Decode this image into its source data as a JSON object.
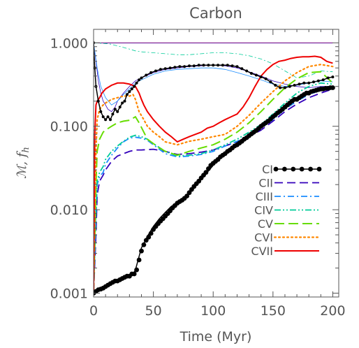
{
  "chart_data": {
    "type": "line",
    "title": "Carbon",
    "xlabel": "Time (Myr)",
    "ylabel": "ℳ, f",
    "ylabel_sub": "h",
    "xlim": [
      0,
      205
    ],
    "ylim": [
      0.0009,
      1.45
    ],
    "yscale": "log",
    "x_ticks": [
      0,
      50,
      100,
      150,
      200
    ],
    "x_tick_labels": [
      "0",
      "50",
      "100",
      "150",
      "200"
    ],
    "y_ticks": [
      0.001,
      0.01,
      0.1,
      1.0
    ],
    "y_tick_labels": [
      "0.001",
      "0.010",
      "0.100",
      "1.000"
    ],
    "grid": false,
    "legend_position": "lower-right",
    "series": [
      {
        "name": "CI",
        "color": "#000000",
        "style": "solid-dots",
        "x": [
          0,
          2,
          3,
          5,
          10,
          15,
          20,
          25,
          30,
          33,
          35,
          40,
          45,
          50,
          55,
          60,
          65,
          70,
          75,
          80,
          85,
          90,
          95,
          100,
          105,
          110,
          115,
          120,
          125,
          130,
          135,
          140,
          145,
          150,
          155,
          160,
          165,
          170,
          175,
          180,
          185,
          190,
          195,
          200
        ],
        "y": [
          0.001,
          0.00105,
          0.0011,
          0.00112,
          0.0012,
          0.0013,
          0.0014,
          0.0015,
          0.0016,
          0.0017,
          0.0019,
          0.0035,
          0.0048,
          0.0063,
          0.0078,
          0.0093,
          0.011,
          0.012,
          0.0135,
          0.016,
          0.019,
          0.023,
          0.028,
          0.034,
          0.04,
          0.047,
          0.052,
          0.058,
          0.065,
          0.075,
          0.087,
          0.1,
          0.115,
          0.13,
          0.15,
          0.17,
          0.19,
          0.21,
          0.23,
          0.25,
          0.27,
          0.28,
          0.28,
          0.29
        ]
      },
      {
        "name": "CII",
        "color": "#3300bb",
        "style": "dash",
        "x": [
          0,
          2,
          3,
          5,
          8,
          10,
          15,
          20,
          25,
          30,
          35,
          40,
          50,
          60,
          70,
          80,
          90,
          100,
          110,
          120,
          130,
          140,
          150,
          160,
          170,
          180,
          190,
          200
        ],
        "y": [
          0.001,
          0.005,
          0.015,
          0.022,
          0.026,
          0.03,
          0.038,
          0.044,
          0.047,
          0.05,
          0.052,
          0.052,
          0.053,
          0.05,
          0.046,
          0.047,
          0.049,
          0.052,
          0.058,
          0.065,
          0.075,
          0.09,
          0.115,
          0.15,
          0.185,
          0.22,
          0.25,
          0.28
        ]
      },
      {
        "name": "CIII",
        "color": "#1a8cff",
        "style": "dash-dot",
        "x": [
          0,
          2,
          3,
          5,
          8,
          10,
          15,
          20,
          25,
          30,
          35,
          40,
          45,
          50,
          60,
          70,
          80,
          90,
          100,
          110,
          120,
          130,
          140,
          150,
          160,
          170,
          180,
          190,
          200
        ],
        "y": [
          0.001,
          0.008,
          0.02,
          0.025,
          0.028,
          0.035,
          0.045,
          0.055,
          0.065,
          0.072,
          0.074,
          0.072,
          0.068,
          0.06,
          0.047,
          0.043,
          0.044,
          0.046,
          0.05,
          0.058,
          0.066,
          0.078,
          0.095,
          0.12,
          0.16,
          0.2,
          0.24,
          0.27,
          0.29
        ]
      },
      {
        "name": "CIV",
        "color": "#00cc99",
        "style": "dash-dot-dot",
        "x": [
          0,
          2,
          3,
          5,
          8,
          10,
          15,
          20,
          25,
          30,
          35,
          40,
          45,
          50,
          60,
          70,
          80,
          90,
          100,
          110,
          120,
          130,
          140,
          150,
          160,
          170,
          180,
          190,
          200
        ],
        "y": [
          0.001,
          0.01,
          0.022,
          0.028,
          0.033,
          0.04,
          0.05,
          0.058,
          0.066,
          0.074,
          0.078,
          0.075,
          0.07,
          0.062,
          0.05,
          0.044,
          0.045,
          0.047,
          0.052,
          0.06,
          0.07,
          0.085,
          0.105,
          0.14,
          0.19,
          0.25,
          0.3,
          0.33,
          0.32
        ]
      },
      {
        "name": "CV",
        "color": "#66dd00",
        "style": "long-dash",
        "x": [
          0,
          2,
          3,
          5,
          8,
          10,
          15,
          20,
          25,
          30,
          35,
          38,
          42,
          45,
          50,
          55,
          60,
          70,
          80,
          90,
          100,
          110,
          120,
          130,
          140,
          150,
          160,
          170,
          180,
          190,
          200
        ],
        "y": [
          0.001,
          0.02,
          0.05,
          0.07,
          0.085,
          0.09,
          0.1,
          0.11,
          0.115,
          0.118,
          0.13,
          0.11,
          0.085,
          0.07,
          0.062,
          0.055,
          0.05,
          0.045,
          0.05,
          0.055,
          0.06,
          0.07,
          0.085,
          0.11,
          0.15,
          0.21,
          0.29,
          0.37,
          0.44,
          0.45,
          0.33
        ]
      },
      {
        "name": "CVI",
        "color": "#ff8800",
        "style": "dots",
        "x": [
          0,
          2,
          3,
          5,
          8,
          10,
          15,
          20,
          25,
          30,
          33,
          35,
          38,
          42,
          45,
          50,
          55,
          60,
          70,
          80,
          90,
          100,
          110,
          120,
          130,
          140,
          150,
          160,
          170,
          180,
          190,
          200
        ],
        "y": [
          0.001,
          0.05,
          0.12,
          0.16,
          0.18,
          0.19,
          0.21,
          0.22,
          0.23,
          0.23,
          0.24,
          0.21,
          0.15,
          0.12,
          0.1,
          0.085,
          0.075,
          0.065,
          0.06,
          0.066,
          0.07,
          0.075,
          0.08,
          0.1,
          0.135,
          0.19,
          0.26,
          0.35,
          0.44,
          0.52,
          0.55,
          0.52
        ]
      },
      {
        "name": "CVII",
        "color": "#ee0000",
        "style": "solid",
        "x": [
          0,
          1,
          2,
          3,
          5,
          7,
          10,
          15,
          20,
          25,
          30,
          35,
          38,
          40,
          42,
          45,
          50,
          55,
          60,
          65,
          70,
          75,
          80,
          85,
          90,
          95,
          100,
          105,
          110,
          115,
          120,
          125,
          130,
          135,
          140,
          145,
          150,
          155,
          160,
          165,
          170,
          175,
          180,
          185,
          190,
          195,
          200
        ],
        "y": [
          0.001,
          0.08,
          0.18,
          0.2,
          0.22,
          0.25,
          0.28,
          0.31,
          0.33,
          0.33,
          0.32,
          0.3,
          0.25,
          0.21,
          0.18,
          0.15,
          0.12,
          0.1,
          0.085,
          0.075,
          0.065,
          0.07,
          0.075,
          0.08,
          0.085,
          0.095,
          0.1,
          0.11,
          0.12,
          0.13,
          0.14,
          0.17,
          0.22,
          0.3,
          0.4,
          0.48,
          0.55,
          0.6,
          0.62,
          0.65,
          0.67,
          0.68,
          0.68,
          0.69,
          0.67,
          0.6,
          0.57
        ]
      },
      {
        "name": "",
        "color": "#ee0000",
        "style": "thin",
        "x": [
          0,
          50,
          100,
          150,
          200
        ],
        "y": [
          1.0,
          1.0,
          1.0,
          1.0,
          1.0
        ]
      },
      {
        "name": "",
        "color": "#3300bb",
        "style": "thin",
        "x": [
          0,
          50,
          100,
          150,
          200
        ],
        "y": [
          0.995,
          0.995,
          0.995,
          0.995,
          0.995
        ]
      },
      {
        "name": "",
        "color": "#00cc99",
        "style": "thin-dashdot",
        "x": [
          0,
          10,
          15,
          20,
          25,
          30,
          35,
          40,
          50,
          60,
          70,
          80,
          90,
          100,
          110,
          120,
          130,
          140,
          150,
          160,
          170,
          180,
          190,
          200
        ],
        "y": [
          1.0,
          0.98,
          0.96,
          0.92,
          0.88,
          0.84,
          0.8,
          0.78,
          0.76,
          0.74,
          0.72,
          0.72,
          0.74,
          0.76,
          0.76,
          0.74,
          0.7,
          0.64,
          0.56,
          0.46,
          0.38,
          0.4,
          0.46,
          0.45
        ]
      },
      {
        "name": "",
        "color": "#3300bb",
        "style": "thin",
        "x": [
          0,
          2,
          4,
          6,
          8,
          10,
          12,
          15,
          18,
          20,
          25,
          30,
          35,
          40,
          50,
          60,
          70,
          80,
          90,
          100,
          110,
          120,
          130,
          140,
          150,
          160,
          170,
          180,
          190,
          200
        ],
        "y": [
          1.0,
          0.6,
          0.35,
          0.25,
          0.2,
          0.18,
          0.16,
          0.15,
          0.17,
          0.2,
          0.25,
          0.3,
          0.35,
          0.38,
          0.44,
          0.48,
          0.5,
          0.52,
          0.53,
          0.54,
          0.53,
          0.5,
          0.45,
          0.4,
          0.35,
          0.32,
          0.3,
          0.29,
          0.3,
          0.3
        ]
      },
      {
        "name": "",
        "color": "#1a8cff",
        "style": "thin",
        "x": [
          0,
          3,
          6,
          10,
          15,
          20,
          25,
          30,
          35,
          40,
          50,
          60,
          70,
          80,
          90,
          100,
          110,
          120,
          130,
          140,
          150,
          160,
          170,
          180,
          190,
          200
        ],
        "y": [
          1.0,
          0.5,
          0.3,
          0.22,
          0.18,
          0.2,
          0.24,
          0.28,
          0.33,
          0.36,
          0.42,
          0.46,
          0.48,
          0.49,
          0.5,
          0.5,
          0.48,
          0.44,
          0.4,
          0.36,
          0.32,
          0.3,
          0.31,
          0.33,
          0.35,
          0.34
        ]
      }
    ],
    "markers_series": {
      "x": [
        0,
        2,
        4,
        6,
        8,
        10,
        12,
        14,
        16,
        18,
        20,
        22,
        24,
        26,
        28,
        30,
        32,
        34,
        36,
        38,
        40,
        42,
        44,
        46,
        48,
        50,
        52,
        54,
        56,
        58,
        60,
        62,
        64,
        66,
        68,
        70,
        72,
        74,
        76,
        78,
        80,
        82,
        84,
        86,
        88,
        90,
        92,
        94,
        96,
        98,
        100,
        102,
        104,
        106,
        108,
        110,
        112,
        114,
        116,
        118,
        120,
        122,
        124,
        126,
        128,
        130,
        132,
        134,
        136,
        138,
        140,
        142,
        144,
        146,
        148,
        150,
        152,
        154,
        156,
        158,
        160,
        162,
        164,
        166,
        168,
        170,
        172,
        174,
        176,
        178,
        180,
        182,
        184,
        186,
        188,
        190,
        192,
        194,
        196,
        198,
        200
      ],
      "y": [
        0.001,
        0.00105,
        0.0011,
        0.00112,
        0.00115,
        0.0012,
        0.00125,
        0.0013,
        0.00135,
        0.0014,
        0.0014,
        0.00145,
        0.0015,
        0.00155,
        0.0016,
        0.0016,
        0.0017,
        0.0017,
        0.0019,
        0.0025,
        0.0032,
        0.0038,
        0.0043,
        0.0047,
        0.0052,
        0.0058,
        0.0063,
        0.0068,
        0.0073,
        0.0078,
        0.0084,
        0.009,
        0.0097,
        0.0105,
        0.0112,
        0.012,
        0.0125,
        0.013,
        0.0137,
        0.0146,
        0.016,
        0.0175,
        0.019,
        0.0205,
        0.022,
        0.024,
        0.026,
        0.028,
        0.031,
        0.034,
        0.036,
        0.038,
        0.04,
        0.043,
        0.045,
        0.047,
        0.05,
        0.052,
        0.055,
        0.058,
        0.06,
        0.063,
        0.066,
        0.07,
        0.073,
        0.077,
        0.081,
        0.085,
        0.089,
        0.094,
        0.1,
        0.105,
        0.11,
        0.115,
        0.122,
        0.13,
        0.137,
        0.145,
        0.152,
        0.16,
        0.17,
        0.18,
        0.19,
        0.2,
        0.21,
        0.21,
        0.22,
        0.23,
        0.24,
        0.25,
        0.25,
        0.26,
        0.265,
        0.27,
        0.275,
        0.28,
        0.28,
        0.285,
        0.285,
        0.29,
        0.29
      ]
    },
    "upper_black_dots": {
      "x": [
        0,
        1,
        2,
        4,
        6,
        8,
        10,
        12,
        14,
        16,
        18,
        20,
        22,
        24,
        26,
        28,
        30,
        32,
        34,
        36,
        38,
        40,
        44,
        48,
        52,
        56,
        60,
        64,
        68,
        72,
        76,
        80,
        84,
        88,
        92,
        96,
        100,
        104,
        108,
        112,
        116,
        120,
        124,
        128,
        132,
        136,
        140,
        144,
        148,
        152,
        156,
        160,
        164,
        168,
        172,
        176,
        180,
        184,
        188,
        192,
        196,
        200
      ],
      "y": [
        1.0,
        0.5,
        0.3,
        0.2,
        0.15,
        0.13,
        0.12,
        0.13,
        0.12,
        0.14,
        0.16,
        0.15,
        0.17,
        0.19,
        0.2,
        0.24,
        0.26,
        0.28,
        0.3,
        0.33,
        0.36,
        0.38,
        0.41,
        0.44,
        0.46,
        0.48,
        0.49,
        0.5,
        0.51,
        0.52,
        0.52,
        0.53,
        0.53,
        0.54,
        0.54,
        0.54,
        0.54,
        0.54,
        0.54,
        0.54,
        0.53,
        0.52,
        0.49,
        0.46,
        0.43,
        0.41,
        0.39,
        0.37,
        0.34,
        0.31,
        0.29,
        0.29,
        0.3,
        0.31,
        0.32,
        0.33,
        0.33,
        0.34,
        0.35,
        0.36,
        0.38,
        0.39
      ]
    }
  }
}
